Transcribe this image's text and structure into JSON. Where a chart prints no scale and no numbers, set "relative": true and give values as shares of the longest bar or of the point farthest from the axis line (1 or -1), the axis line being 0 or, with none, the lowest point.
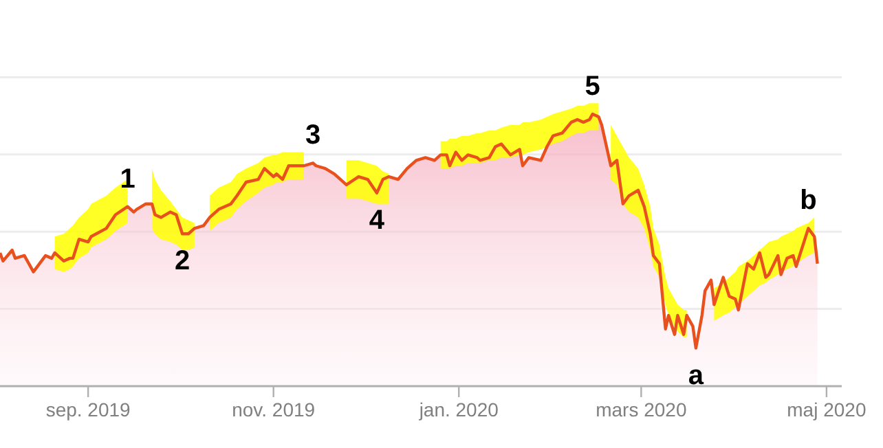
{
  "chart_data": {
    "type": "area",
    "relative": true,
    "grid": "y",
    "xlim": [
      "2019-08-03",
      "2020-05-06"
    ],
    "xticks": [
      {
        "value": "2019-09-01",
        "label": "sep. 2019"
      },
      {
        "value": "2019-11-01",
        "label": "nov. 2019"
      },
      {
        "value": "2020-01-01",
        "label": "jan. 2020"
      },
      {
        "value": "2020-03-01",
        "label": "mars 2020"
      },
      {
        "value": "2020-05-01",
        "label": "maj 2020"
      }
    ],
    "x": [
      "2019-08-03",
      "2019-08-04",
      "2019-08-07",
      "2019-08-08",
      "2019-08-11",
      "2019-08-14",
      "2019-08-18",
      "2019-08-20",
      "2019-08-21",
      "2019-08-24",
      "2019-08-26",
      "2019-08-27",
      "2019-08-29",
      "2019-09-01",
      "2019-09-02",
      "2019-09-07",
      "2019-09-10",
      "2019-09-14",
      "2019-09-16",
      "2019-09-17",
      "2019-09-20",
      "2019-09-22",
      "2019-09-23",
      "2019-09-25",
      "2019-09-28",
      "2019-09-30",
      "2019-10-02",
      "2019-10-04",
      "2019-10-06",
      "2019-10-09",
      "2019-10-11",
      "2019-10-14",
      "2019-10-18",
      "2019-10-20",
      "2019-10-23",
      "2019-10-27",
      "2019-10-29",
      "2019-11-01",
      "2019-11-02",
      "2019-11-04",
      "2019-11-06",
      "2019-11-08",
      "2019-11-11",
      "2019-11-14",
      "2019-11-15",
      "2019-11-18",
      "2019-11-21",
      "2019-11-25",
      "2019-11-29",
      "2019-12-02",
      "2019-12-05",
      "2019-12-07",
      "2019-12-09",
      "2019-12-12",
      "2019-12-15",
      "2019-12-18",
      "2019-12-21",
      "2019-12-24",
      "2019-12-26",
      "2019-12-28",
      "2019-12-29",
      "2019-12-31",
      "2020-01-02",
      "2020-01-04",
      "2020-01-07",
      "2020-01-08",
      "2020-01-11",
      "2020-01-13",
      "2020-01-15",
      "2020-01-18",
      "2020-01-21",
      "2020-01-22",
      "2020-01-24",
      "2020-01-28",
      "2020-01-30",
      "2020-02-01",
      "2020-02-04",
      "2020-02-07",
      "2020-02-09",
      "2020-02-11",
      "2020-02-13",
      "2020-02-14",
      "2020-02-16",
      "2020-02-17",
      "2020-02-19",
      "2020-02-20",
      "2020-02-22",
      "2020-02-24",
      "2020-02-26",
      "2020-02-29",
      "2020-03-02",
      "2020-03-04",
      "2020-03-05",
      "2020-03-07",
      "2020-03-09",
      "2020-03-10",
      "2020-03-12",
      "2020-03-13",
      "2020-03-15",
      "2020-03-16",
      "2020-03-18",
      "2020-03-19",
      "2020-03-21",
      "2020-03-22",
      "2020-03-24",
      "2020-03-25",
      "2020-03-28",
      "2020-03-30",
      "2020-04-01",
      "2020-04-02",
      "2020-04-05",
      "2020-04-07",
      "2020-04-09",
      "2020-04-11",
      "2020-04-12",
      "2020-04-15",
      "2020-04-16",
      "2020-04-18",
      "2020-04-20",
      "2020-04-21",
      "2020-04-25",
      "2020-04-27",
      "2020-04-28"
    ],
    "series": [
      {
        "color": "#e8501e",
        "values": [
          0.49,
          0.46,
          0.5,
          0.47,
          0.48,
          0.42,
          0.48,
          0.47,
          0.49,
          0.46,
          0.47,
          0.47,
          0.54,
          0.53,
          0.55,
          0.58,
          0.63,
          0.66,
          0.64,
          0.65,
          0.67,
          0.67,
          0.63,
          0.62,
          0.64,
          0.63,
          0.56,
          0.56,
          0.58,
          0.59,
          0.62,
          0.65,
          0.67,
          0.7,
          0.75,
          0.76,
          0.8,
          0.77,
          0.78,
          0.76,
          0.81,
          0.81,
          0.81,
          0.82,
          0.81,
          0.8,
          0.78,
          0.74,
          0.77,
          0.76,
          0.71,
          0.76,
          0.77,
          0.76,
          0.8,
          0.83,
          0.84,
          0.83,
          0.85,
          0.85,
          0.81,
          0.86,
          0.83,
          0.85,
          0.84,
          0.83,
          0.84,
          0.88,
          0.89,
          0.85,
          0.87,
          0.81,
          0.84,
          0.83,
          0.88,
          0.92,
          0.93,
          0.97,
          0.98,
          0.97,
          0.98,
          1.0,
          0.99,
          0.96,
          0.86,
          0.81,
          0.83,
          0.67,
          0.7,
          0.72,
          0.66,
          0.56,
          0.48,
          0.45,
          0.21,
          0.26,
          0.19,
          0.26,
          0.19,
          0.26,
          0.22,
          0.14,
          0.26,
          0.35,
          0.39,
          0.3,
          0.4,
          0.33,
          0.32,
          0.28,
          0.45,
          0.43,
          0.49,
          0.4,
          0.41,
          0.48,
          0.41,
          0.47,
          0.48,
          0.44,
          0.58,
          0.55,
          0.45
        ],
        "lower": [
          null,
          null,
          null,
          null,
          null,
          null,
          null,
          null,
          0.43,
          0.42,
          0.43,
          0.44,
          0.47,
          0.49,
          0.51,
          0.54,
          0.57,
          0.6,
          null,
          null,
          null,
          0.58,
          0.56,
          0.54,
          0.53,
          0.52,
          0.5,
          0.5,
          0.51,
          null,
          0.57,
          0.6,
          0.62,
          0.65,
          0.68,
          0.71,
          0.73,
          0.74,
          0.75,
          0.75,
          0.76,
          0.76,
          0.76,
          null,
          null,
          null,
          null,
          0.69,
          0.69,
          0.68,
          0.67,
          0.67,
          0.67,
          null,
          null,
          null,
          null,
          null,
          0.8,
          0.8,
          0.8,
          0.81,
          0.81,
          0.82,
          0.82,
          0.82,
          0.83,
          0.83,
          0.84,
          0.84,
          0.85,
          0.85,
          0.86,
          0.87,
          0.88,
          0.89,
          0.9,
          0.92,
          0.93,
          0.93,
          0.94,
          0.94,
          0.94,
          null,
          null,
          0.76,
          0.74,
          0.67,
          0.64,
          0.62,
          0.58,
          0.5,
          0.44,
          0.4,
          0.3,
          0.26,
          0.22,
          0.2,
          0.18,
          0.18,
          null,
          null,
          null,
          null,
          null,
          0.24,
          0.26,
          0.27,
          0.29,
          0.3,
          0.33,
          0.35,
          0.37,
          0.38,
          0.39,
          0.41,
          0.42,
          0.43,
          0.44,
          0.45,
          0.48,
          0.49,
          null
        ],
        "upper": [
          null,
          null,
          null,
          null,
          null,
          null,
          null,
          null,
          0.55,
          0.56,
          0.58,
          0.59,
          0.62,
          0.65,
          0.67,
          0.7,
          0.73,
          0.76,
          null,
          null,
          null,
          0.8,
          0.76,
          0.72,
          0.68,
          0.65,
          0.62,
          0.61,
          0.6,
          null,
          0.7,
          0.73,
          0.75,
          0.78,
          0.8,
          0.82,
          0.84,
          0.85,
          0.85,
          0.86,
          0.86,
          0.86,
          0.86,
          null,
          null,
          null,
          null,
          0.83,
          0.83,
          0.82,
          0.81,
          0.79,
          0.78,
          null,
          null,
          null,
          null,
          null,
          0.9,
          0.9,
          0.91,
          0.91,
          0.92,
          0.92,
          0.93,
          0.93,
          0.94,
          0.94,
          0.95,
          0.96,
          0.96,
          0.97,
          0.97,
          0.98,
          0.99,
          1.0,
          1.01,
          1.02,
          1.03,
          1.03,
          1.04,
          1.04,
          1.04,
          null,
          null,
          0.96,
          0.92,
          0.88,
          0.84,
          0.8,
          0.74,
          0.66,
          0.58,
          0.52,
          0.4,
          0.36,
          0.32,
          0.3,
          0.28,
          0.28,
          null,
          null,
          null,
          null,
          null,
          0.36,
          0.38,
          0.4,
          0.42,
          0.44,
          0.46,
          0.48,
          0.5,
          0.52,
          0.53,
          0.54,
          0.55,
          0.56,
          0.57,
          0.58,
          0.6,
          0.62,
          null
        ]
      }
    ],
    "annotations": [
      {
        "text": "1",
        "x": "2019-09-14",
        "y": 0.66
      },
      {
        "text": "2",
        "x": "2019-10-02",
        "y": 0.56
      },
      {
        "text": "3",
        "x": "2019-11-14",
        "y": 0.82
      },
      {
        "text": "4",
        "x": "2019-12-05",
        "y": 0.71
      },
      {
        "text": "5",
        "x": "2020-02-14",
        "y": 1.0
      },
      {
        "text": "a",
        "x": "2020-03-19",
        "y": 0.14
      },
      {
        "text": "b",
        "x": "2020-04-25",
        "y": 0.58
      }
    ]
  }
}
